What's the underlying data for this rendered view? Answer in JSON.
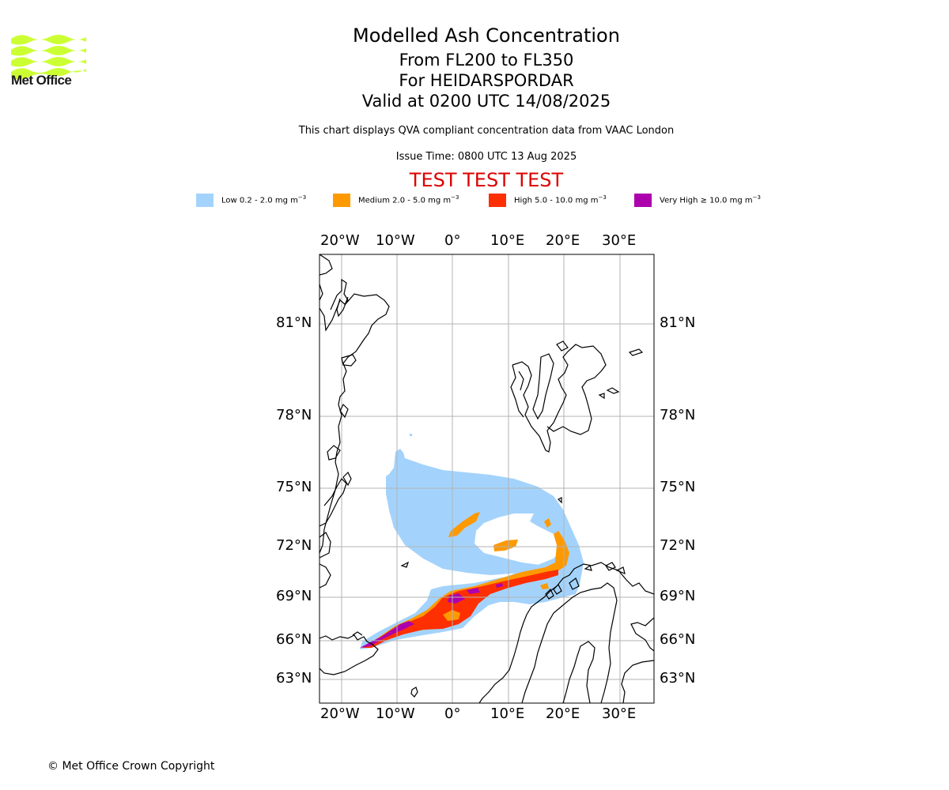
{
  "header": {
    "title": "Modelled Ash Concentration",
    "levels": "From FL200 to FL350",
    "volcano": "For HEIDARSPORDAR",
    "valid": "Valid at 0200 UTC 14/08/2025",
    "subtitle": "This chart displays QVA compliant concentration data from VAAC London",
    "issue_time": "Issue Time: 0800 UTC 13 Aug 2025",
    "test_banner": "TEST TEST TEST"
  },
  "logo": {
    "text": "Met Office",
    "color": "#ccff33"
  },
  "legend": [
    {
      "label": "Low 0.2 - 2.0 mg m",
      "sup": "−3",
      "color": "#a3d3fc"
    },
    {
      "label": "Medium 2.0 - 5.0 mg m",
      "sup": "−3",
      "color": "#fe9900"
    },
    {
      "label": "High 5.0 - 10.0 mg m",
      "sup": "−3",
      "color": "#fe2f00"
    },
    {
      "label": "Very High  ≥  10.0 mg m",
      "sup": "−3",
      "color": "#ad00ad"
    }
  ],
  "map": {
    "lon_labels": [
      "20°W",
      "10°W",
      "0°",
      "10°E",
      "20°E",
      "30°E"
    ],
    "lat_labels": [
      "81°N",
      "78°N",
      "75°N",
      "72°N",
      "69°N",
      "66°N",
      "63°N"
    ]
  },
  "footer": {
    "copyright": "© Met Office Crown Copyright"
  }
}
